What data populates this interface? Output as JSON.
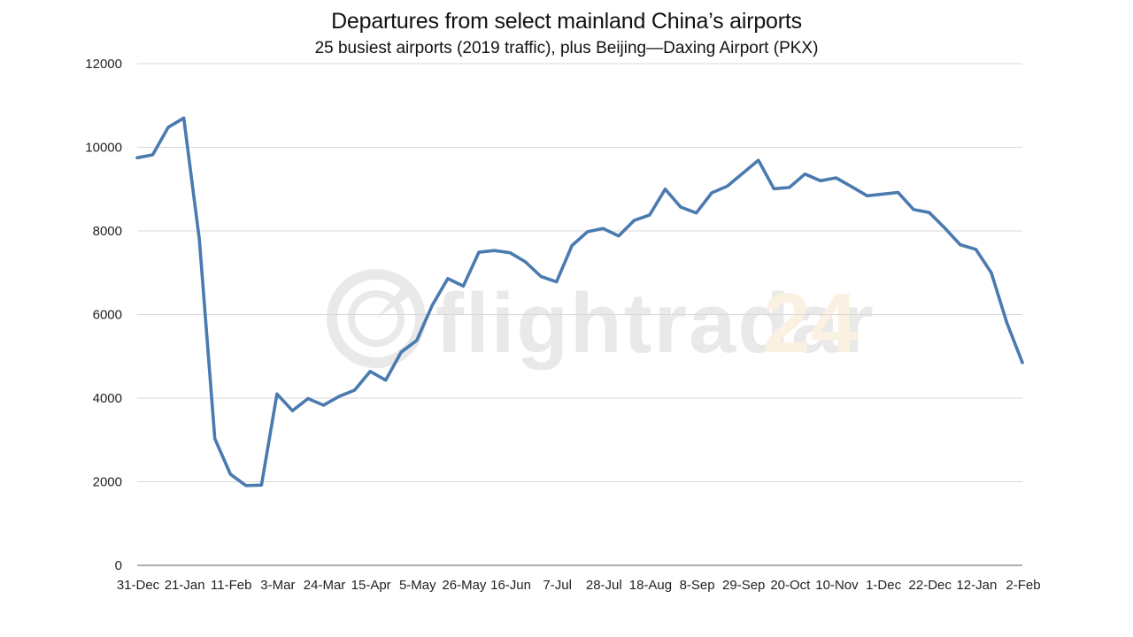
{
  "chart_data": {
    "type": "line",
    "title": "Departures from select mainland China’s airports",
    "subtitle": "25 busiest airports (2019 traffic), plus Beijing—Daxing Airport (PKX)",
    "watermark": {
      "text_main": "flightradar",
      "text_accent": "24",
      "main_color": "#e9e9e9",
      "accent_color": "#fbf1e2"
    },
    "xlabel": "",
    "ylabel": "",
    "ylim": [
      0,
      12000
    ],
    "yticks": [
      0,
      2000,
      4000,
      6000,
      8000,
      10000,
      12000
    ],
    "grid": true,
    "legend": "none",
    "line_color": "#4a7aaf",
    "x_tick_labels": [
      "31-Dec",
      "21-Jan",
      "11-Feb",
      "3-Mar",
      "24-Mar",
      "15-Apr",
      "5-May",
      "26-May",
      "16-Jun",
      "7-Jul",
      "28-Jul",
      "18-Aug",
      "8-Sep",
      "29-Sep",
      "20-Oct",
      "10-Nov",
      "1-Dec",
      "22-Dec",
      "12-Jan",
      "2-Feb"
    ],
    "series": [
      {
        "values": [
          9750,
          9820,
          10480,
          10700,
          7800,
          3030,
          2180,
          1910,
          1920,
          4100,
          3700,
          3990,
          3830,
          4040,
          4190,
          4640,
          4430,
          5100,
          5380,
          6220,
          6860,
          6680,
          7490,
          7530,
          7480,
          7260,
          6910,
          6780,
          7650,
          7980,
          8060,
          7880,
          8250,
          8380,
          9000,
          8570,
          8430,
          8910,
          9070,
          9380,
          9690,
          9010,
          9040,
          9360,
          9200,
          9270,
          9060,
          8840,
          8880,
          8920,
          8510,
          8440,
          8070,
          7670,
          7560,
          7000,
          5800,
          4850
        ]
      }
    ]
  }
}
